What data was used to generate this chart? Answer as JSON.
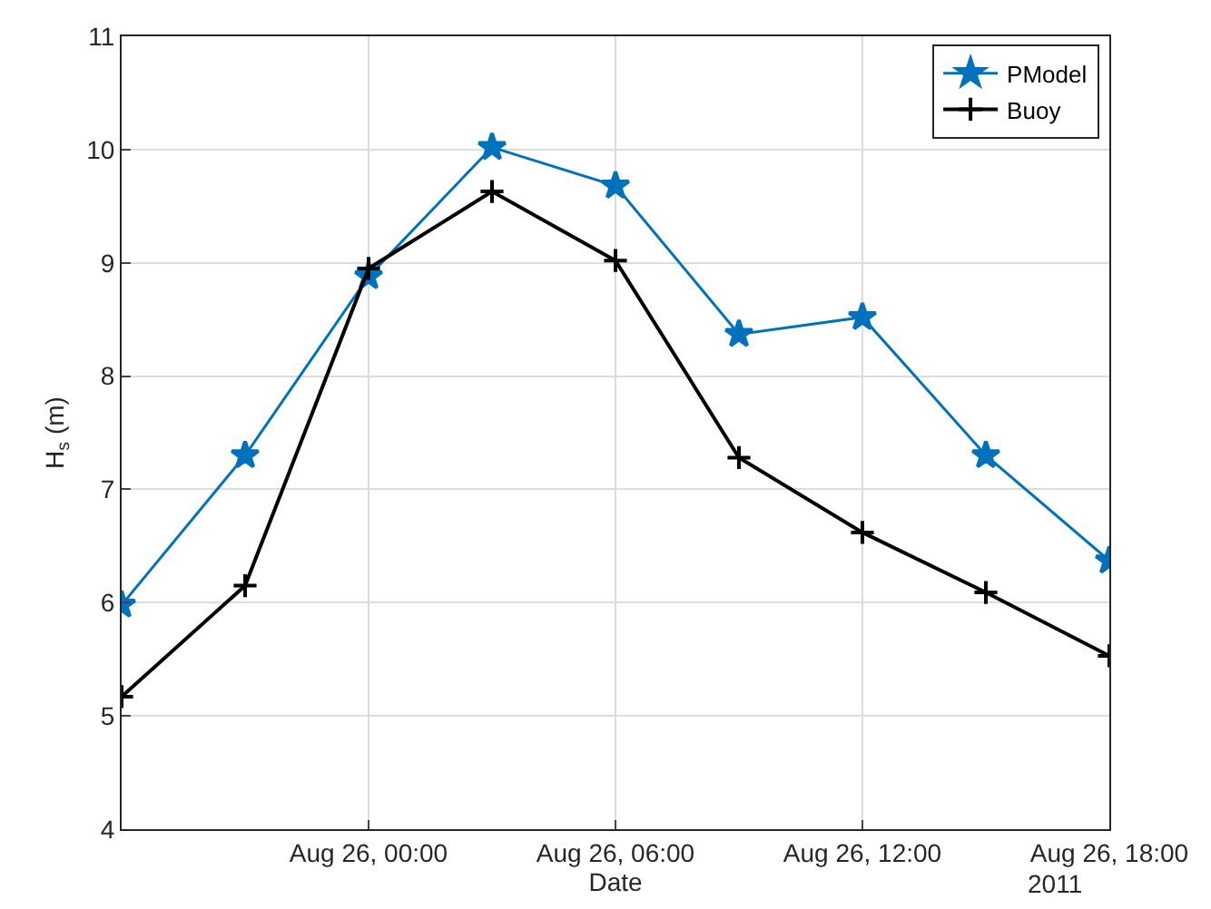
{
  "chart_data": {
    "type": "line",
    "xlabel": "Date",
    "ylabel": "H$_{s}$ (m)",
    "x": [
      "2011-08-25T18:00",
      "2011-08-25T21:00",
      "2011-08-26T00:00",
      "2011-08-26T03:00",
      "2011-08-26T06:00",
      "2011-08-26T09:00",
      "2011-08-26T12:00",
      "2011-08-26T15:00",
      "2011-08-26T18:00"
    ],
    "series": [
      {
        "name": "PModel",
        "color": "#0072bd",
        "marker": "star",
        "values": [
          5.98,
          7.3,
          8.88,
          10.02,
          9.68,
          8.37,
          8.52,
          7.3,
          6.37
        ]
      },
      {
        "name": "Buoy",
        "color": "#000000",
        "marker": "cross",
        "values": [
          5.17,
          6.15,
          8.95,
          9.63,
          9.02,
          7.28,
          6.62,
          6.09,
          5.53
        ]
      }
    ],
    "xlim": [
      "2011-08-25T18:00",
      "2011-08-26T18:00"
    ],
    "xticks": [
      {
        "value": "2011-08-26T00:00",
        "label": "Aug 26, 00:00"
      },
      {
        "value": "2011-08-26T06:00",
        "label": "Aug 26, 06:00"
      },
      {
        "value": "2011-08-26T12:00",
        "label": "Aug 26, 12:00"
      },
      {
        "value": "2011-08-26T18:00",
        "label": "Aug 26, 18:00"
      }
    ],
    "ylim": [
      4,
      11
    ],
    "yticks": [
      4,
      5,
      6,
      7,
      8,
      9,
      10,
      11
    ],
    "annotations": [
      "2011"
    ],
    "grid": true,
    "legend": "top right",
    "line_style": "solid"
  }
}
